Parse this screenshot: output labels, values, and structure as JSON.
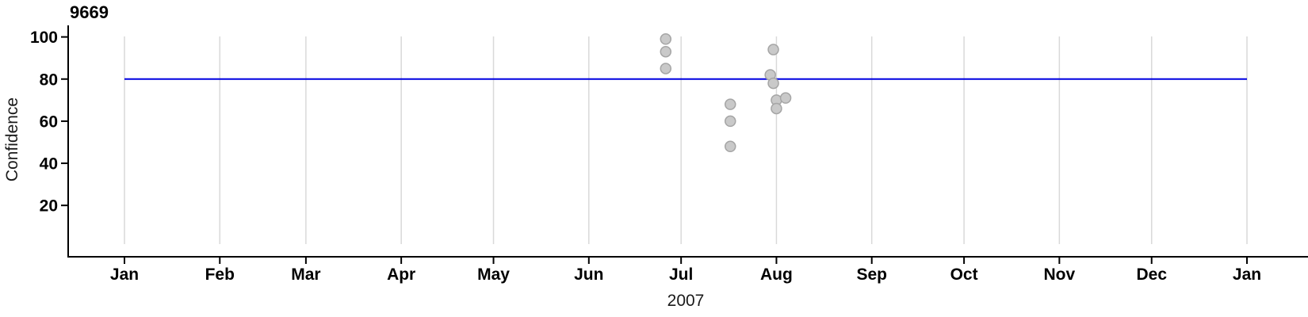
{
  "chart_data": {
    "type": "scatter",
    "title": "9669",
    "x_axis": {
      "label": "2007",
      "tick_labels": [
        "Jan",
        "Feb",
        "Mar",
        "Apr",
        "May",
        "Jun",
        "Jul",
        "Aug",
        "Sep",
        "Oct",
        "Nov",
        "Dec",
        "Jan"
      ],
      "tick_days": [
        0,
        31,
        59,
        90,
        120,
        151,
        181,
        212,
        243,
        273,
        304,
        334,
        365
      ],
      "range_days": [
        0,
        365
      ],
      "grid": true
    },
    "y_axis": {
      "label": "Confidence",
      "ticks": [
        20,
        40,
        60,
        80,
        100
      ],
      "range": [
        -5,
        105
      ],
      "grid": false
    },
    "reference_line": {
      "y": 80,
      "span_days": [
        0,
        365
      ],
      "color": "#0000e0"
    },
    "points": [
      {
        "day": 176,
        "value": 99
      },
      {
        "day": 176,
        "value": 93
      },
      {
        "day": 176,
        "value": 85
      },
      {
        "day": 197,
        "value": 68
      },
      {
        "day": 197,
        "value": 60
      },
      {
        "day": 197,
        "value": 48
      },
      {
        "day": 210,
        "value": 82
      },
      {
        "day": 211,
        "value": 94
      },
      {
        "day": 211,
        "value": 78
      },
      {
        "day": 212,
        "value": 70
      },
      {
        "day": 212,
        "value": 66
      },
      {
        "day": 215,
        "value": 71
      }
    ],
    "style": {
      "point_fill": "#c9c9c9",
      "point_stroke": "#a5a5a5",
      "grid_color": "#d9d9d9",
      "axis_color": "#000000",
      "legend": "none"
    }
  }
}
